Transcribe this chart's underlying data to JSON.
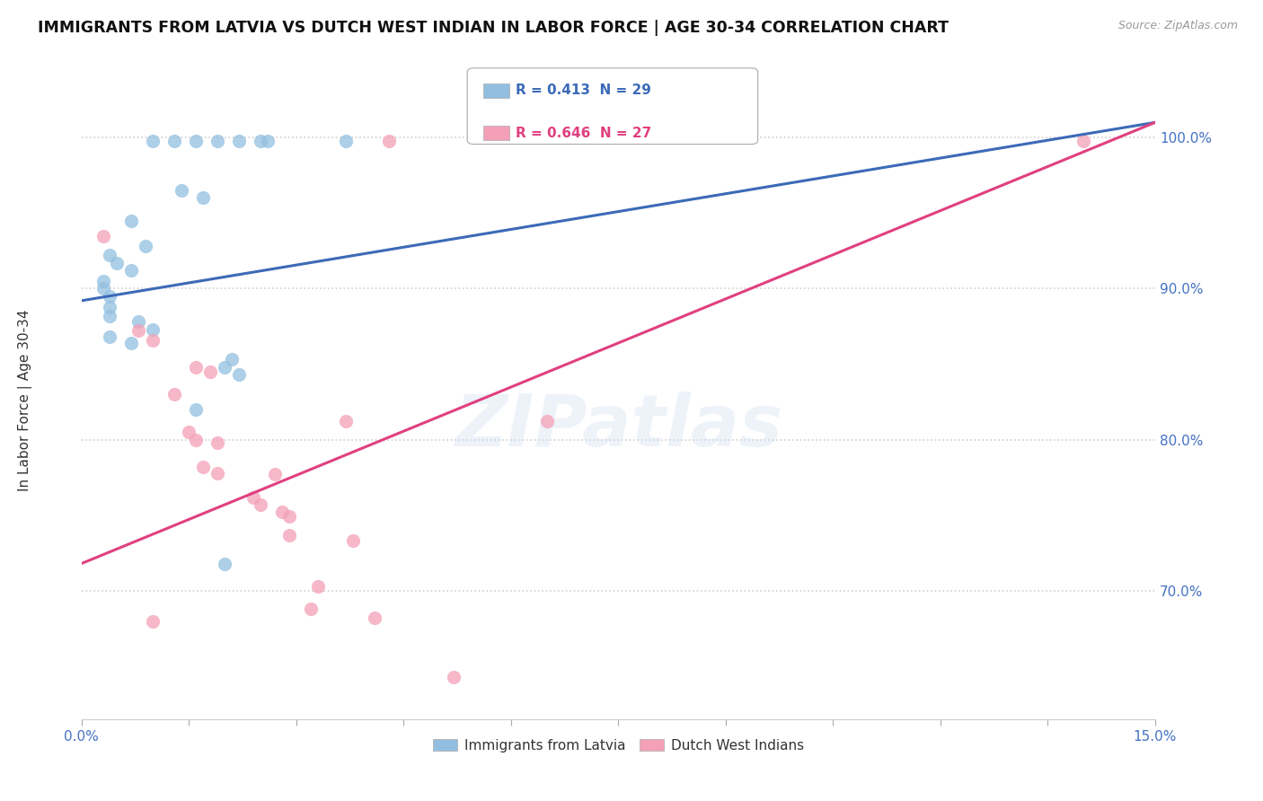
{
  "title": "IMMIGRANTS FROM LATVIA VS DUTCH WEST INDIAN IN LABOR FORCE | AGE 30-34 CORRELATION CHART",
  "source": "Source: ZipAtlas.com",
  "ylabel": "In Labor Force | Age 30-34",
  "yticks_labels": [
    "70.0%",
    "80.0%",
    "90.0%",
    "100.0%"
  ],
  "ytick_vals": [
    0.7,
    0.8,
    0.9,
    1.0
  ],
  "xtick_labels": [
    "0.0%",
    "",
    "",
    "",
    "",
    "",
    "",
    "",
    "",
    "",
    "15.0%"
  ],
  "xlim": [
    0.0,
    0.15
  ],
  "ylim": [
    0.615,
    1.045
  ],
  "legend_entries": [
    {
      "label": "Immigrants from Latvia",
      "color": "#a8c8e8",
      "R": "0.413",
      "N": "29"
    },
    {
      "label": "Dutch West Indians",
      "color": "#f4a8b8",
      "R": "0.646",
      "N": "27"
    }
  ],
  "blue_scatter": [
    [
      0.01,
      0.998
    ],
    [
      0.013,
      0.998
    ],
    [
      0.016,
      0.998
    ],
    [
      0.019,
      0.998
    ],
    [
      0.022,
      0.998
    ],
    [
      0.025,
      0.998
    ],
    [
      0.026,
      0.998
    ],
    [
      0.037,
      0.998
    ],
    [
      0.014,
      0.965
    ],
    [
      0.017,
      0.96
    ],
    [
      0.007,
      0.945
    ],
    [
      0.009,
      0.928
    ],
    [
      0.004,
      0.922
    ],
    [
      0.005,
      0.917
    ],
    [
      0.007,
      0.912
    ],
    [
      0.003,
      0.905
    ],
    [
      0.003,
      0.9
    ],
    [
      0.004,
      0.895
    ],
    [
      0.004,
      0.888
    ],
    [
      0.004,
      0.882
    ],
    [
      0.008,
      0.878
    ],
    [
      0.01,
      0.873
    ],
    [
      0.004,
      0.868
    ],
    [
      0.007,
      0.864
    ],
    [
      0.021,
      0.853
    ],
    [
      0.02,
      0.848
    ],
    [
      0.022,
      0.843
    ],
    [
      0.016,
      0.82
    ],
    [
      0.02,
      0.718
    ]
  ],
  "pink_scatter": [
    [
      0.003,
      0.935
    ],
    [
      0.008,
      0.872
    ],
    [
      0.01,
      0.866
    ],
    [
      0.016,
      0.848
    ],
    [
      0.018,
      0.845
    ],
    [
      0.013,
      0.83
    ],
    [
      0.015,
      0.805
    ],
    [
      0.016,
      0.8
    ],
    [
      0.019,
      0.798
    ],
    [
      0.017,
      0.782
    ],
    [
      0.019,
      0.778
    ],
    [
      0.027,
      0.777
    ],
    [
      0.024,
      0.762
    ],
    [
      0.025,
      0.757
    ],
    [
      0.028,
      0.752
    ],
    [
      0.029,
      0.749
    ],
    [
      0.037,
      0.812
    ],
    [
      0.038,
      0.733
    ],
    [
      0.029,
      0.737
    ],
    [
      0.033,
      0.703
    ],
    [
      0.032,
      0.688
    ],
    [
      0.01,
      0.68
    ],
    [
      0.043,
      0.998
    ],
    [
      0.065,
      0.812
    ],
    [
      0.041,
      0.682
    ],
    [
      0.052,
      0.643
    ],
    [
      0.14,
      0.998
    ]
  ],
  "blue_line_x": [
    0.0,
    0.15
  ],
  "blue_line_y": [
    0.892,
    1.01
  ],
  "pink_line_x": [
    0.0,
    0.15
  ],
  "pink_line_y": [
    0.718,
    1.01
  ],
  "grid_color": "#d0d0d0",
  "background_color": "#ffffff",
  "scatter_size": 120,
  "blue_color": "#92bfe0",
  "pink_color": "#f4a0b8",
  "blue_line_color": "#3c6ab8",
  "pink_line_color": "#e04080",
  "title_fontsize": 12.5,
  "tick_color": "#4472c4",
  "watermark": "ZIPatlas"
}
